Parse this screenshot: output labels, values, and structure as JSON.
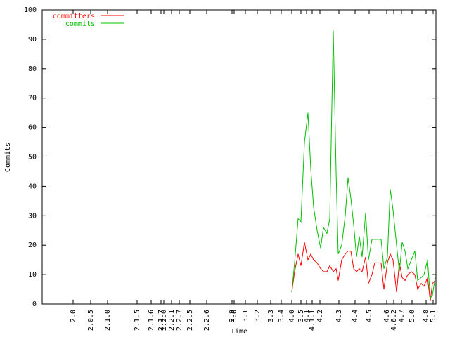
{
  "chart_data": {
    "type": "line",
    "xlabel": "Time",
    "ylabel": "Commits",
    "xlim": [
      0,
      560
    ],
    "ylim": [
      0,
      100
    ],
    "yticks": [
      0,
      10,
      20,
      30,
      40,
      50,
      60,
      70,
      80,
      90,
      100
    ],
    "xticks": [
      {
        "value": 44,
        "label": "2.0"
      },
      {
        "value": 69,
        "label": "2.0.5"
      },
      {
        "value": 93,
        "label": "2.1.0"
      },
      {
        "value": 135,
        "label": "2.1.5"
      },
      {
        "value": 155,
        "label": "2.1.6"
      },
      {
        "value": 169,
        "label": "2.1.7"
      },
      {
        "value": 173,
        "label": "2.2.0"
      },
      {
        "value": 184,
        "label": "2.2.1"
      },
      {
        "value": 195,
        "label": "2.2.7"
      },
      {
        "value": 210,
        "label": "2.2.5"
      },
      {
        "value": 234,
        "label": "2.2.6"
      },
      {
        "value": 270,
        "label": "2.9"
      },
      {
        "value": 273,
        "label": "3.0"
      },
      {
        "value": 289,
        "label": "3.1"
      },
      {
        "value": 306,
        "label": "3.2"
      },
      {
        "value": 325,
        "label": "3.3"
      },
      {
        "value": 340,
        "label": "3.4"
      },
      {
        "value": 355,
        "label": "4.0"
      },
      {
        "value": 368,
        "label": "3.5"
      },
      {
        "value": 376,
        "label": "4.1"
      },
      {
        "value": 384,
        "label": "4.1.1"
      },
      {
        "value": 395,
        "label": "4.2"
      },
      {
        "value": 422,
        "label": "4.3"
      },
      {
        "value": 445,
        "label": "4.4"
      },
      {
        "value": 465,
        "label": "4.5"
      },
      {
        "value": 490,
        "label": "4.6"
      },
      {
        "value": 500,
        "label": "4.6.2"
      },
      {
        "value": 511,
        "label": "4.7"
      },
      {
        "value": 526,
        "label": "5.0"
      },
      {
        "value": 546,
        "label": "4.8"
      },
      {
        "value": 556,
        "label": "5.1"
      }
    ],
    "x": [
      355,
      359,
      364,
      368,
      373,
      378,
      382,
      386,
      391,
      396,
      400,
      405,
      409,
      414,
      418,
      421,
      426,
      431,
      435,
      439,
      443,
      447,
      451,
      455,
      460,
      464,
      469,
      473,
      478,
      482,
      486,
      491,
      495,
      499,
      504,
      508,
      512,
      516,
      520,
      525,
      530,
      534,
      539,
      543,
      548,
      552,
      555,
      559
    ],
    "legend": "upper left",
    "series": [
      {
        "name": "committers",
        "color": "#ff0000",
        "values": [
          4,
          11,
          17,
          13,
          21,
          15,
          17,
          15,
          14,
          12,
          11,
          11,
          13,
          11,
          12,
          8,
          15,
          17,
          18,
          18,
          12,
          11,
          12,
          11,
          16,
          7,
          10,
          14,
          14,
          14,
          5,
          14,
          17,
          15,
          4,
          14,
          9,
          8,
          10,
          11,
          10,
          5,
          7,
          6,
          9,
          1,
          7,
          8
        ]
      },
      {
        "name": "commits",
        "color": "#00c000",
        "values": [
          4,
          14,
          29,
          28,
          55,
          65,
          46,
          33,
          25,
          19,
          26,
          24,
          29,
          93,
          45,
          17,
          20,
          30,
          43,
          36,
          27,
          16,
          23,
          16,
          31,
          15,
          22,
          22,
          22,
          22,
          12,
          16,
          39,
          32,
          20,
          11,
          21,
          18,
          12,
          15,
          18,
          8,
          9,
          10,
          15,
          2,
          3,
          9
        ]
      }
    ]
  }
}
